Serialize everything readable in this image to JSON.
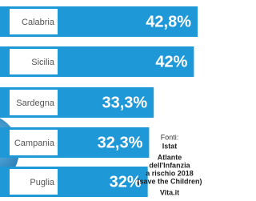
{
  "chart_data": {
    "type": "bar",
    "categories": [
      "Calabria",
      "Sicilia",
      "Sardegna",
      "Campania",
      "Puglia"
    ],
    "values": [
      42.8,
      42,
      33.3,
      32.3,
      32
    ],
    "value_labels": [
      "42,8%",
      "42%",
      "33,3%",
      "32,3%",
      "32%"
    ],
    "color": "#1f98d8",
    "source": [
      "Fonti:",
      "Istat",
      "Atlante",
      "dell'Infanzia",
      "a rischio 2018",
      "(save the Children)",
      "Vita.it"
    ]
  }
}
